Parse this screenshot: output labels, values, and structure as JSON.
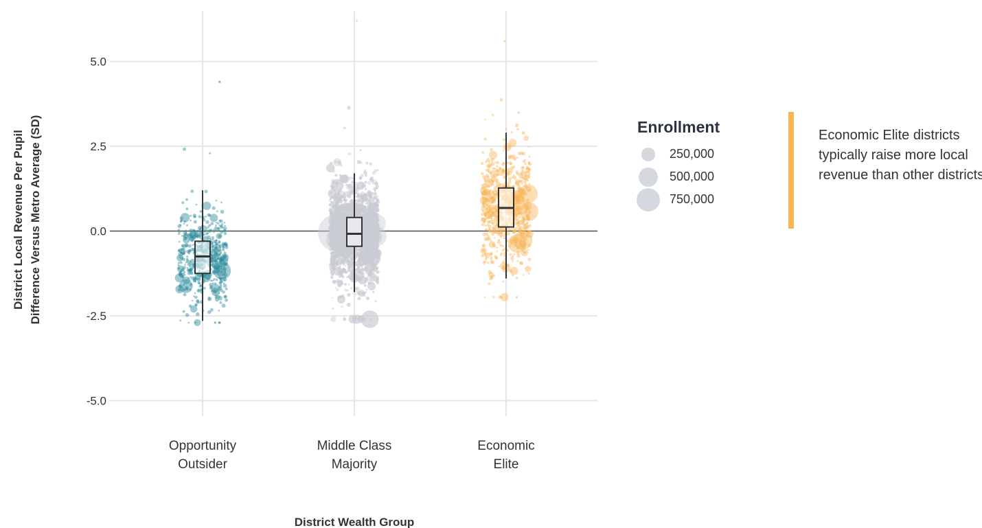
{
  "chart_data": {
    "type": "scatter",
    "subtype": "jittered strip plot with box plots",
    "xlabel": "District Wealth Group",
    "ylabel_lines": [
      "District Local Revenue Per Pupil",
      "Difference Versus Metro Average (SD)"
    ],
    "ylim": [
      -5.5,
      6.3
    ],
    "yticks": [
      5.0,
      2.5,
      0.0,
      -2.5,
      -5.0
    ],
    "ytick_labels": [
      "5.0",
      "2.5",
      "0.0",
      "-2.5",
      "-5.0"
    ],
    "reference_line_y": 0.0,
    "grid": true,
    "categories": [
      {
        "label_lines": [
          "Opportunity",
          "Outsider"
        ],
        "color": "#2b8a9a",
        "point_count": 500
      },
      {
        "label_lines": [
          "Middle Class",
          "Majority"
        ],
        "color": "#c9ccd3",
        "point_count": 3600
      },
      {
        "label_lines": [
          "Economic",
          "Elite"
        ],
        "color": "#f9b659",
        "point_count": 650
      }
    ],
    "boxplots": [
      {
        "median": -0.75,
        "q1": -1.25,
        "q3": -0.3,
        "whisker_low": -2.65,
        "whisker_high": 1.2
      },
      {
        "median": -0.08,
        "q1": -0.45,
        "q3": 0.4,
        "whisker_low": -1.8,
        "whisker_high": 1.7
      },
      {
        "median": 0.68,
        "q1": 0.12,
        "q3": 1.27,
        "whisker_low": -1.4,
        "whisker_high": 2.9
      }
    ],
    "value_ranges": [
      {
        "min": -2.7,
        "max": 4.4
      },
      {
        "min": -2.6,
        "max": 6.2
      },
      {
        "min": -1.95,
        "max": 5.6
      }
    ],
    "legend": {
      "title": "Enrollment",
      "entries": [
        {
          "label": "250,000",
          "value": 250000
        },
        {
          "label": "500,000",
          "value": 500000
        },
        {
          "label": "750,000",
          "value": 750000
        }
      ],
      "placement": "right"
    },
    "annotation": {
      "text": "Economic Elite districts typically raise more local revenue than other districts.",
      "accent_color": "#f9b659"
    }
  }
}
